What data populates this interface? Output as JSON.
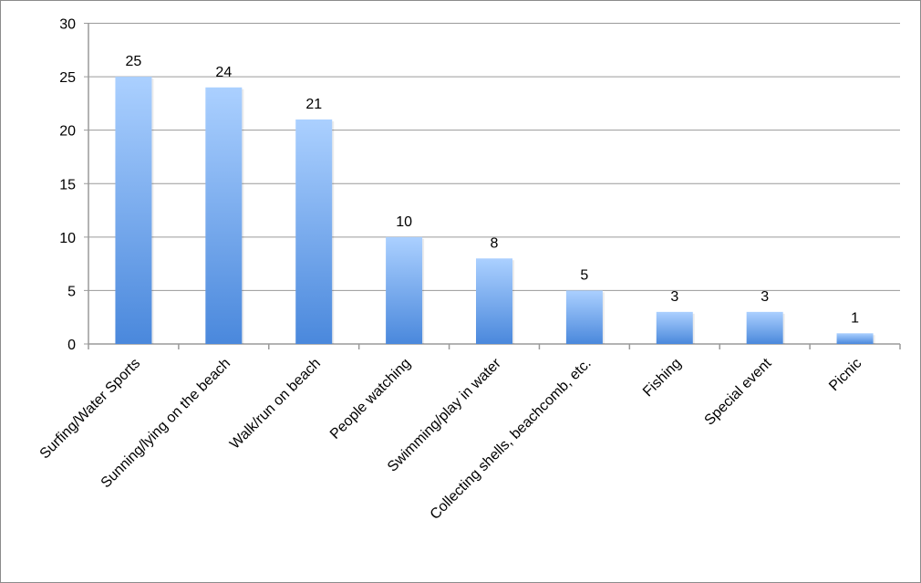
{
  "chart_data": {
    "type": "bar",
    "title": "",
    "xlabel": "",
    "ylabel": "",
    "categories": [
      "Surfing/Water Sports",
      "Sunning/lying on the beach",
      "Walk/run on beach",
      "People watching",
      "Swimming/play in water",
      "Collecting shells, beachcomb, etc.",
      "Fishing",
      "Special event",
      "Picnic"
    ],
    "values": [
      25,
      24,
      21,
      10,
      8,
      5,
      3,
      3,
      1
    ],
    "data_labels": [
      "25",
      "24",
      "21",
      "10",
      "8",
      "5",
      "3",
      "3",
      "1"
    ],
    "ylim": [
      0,
      30
    ],
    "yticks": [
      "0",
      "5",
      "10",
      "15",
      "20",
      "25",
      "30"
    ],
    "grid": true,
    "legend": "none",
    "colors": {
      "bar_top": "#abd0ff",
      "bar_bottom": "#4a88dc",
      "grid": "#9a9a9a"
    }
  }
}
